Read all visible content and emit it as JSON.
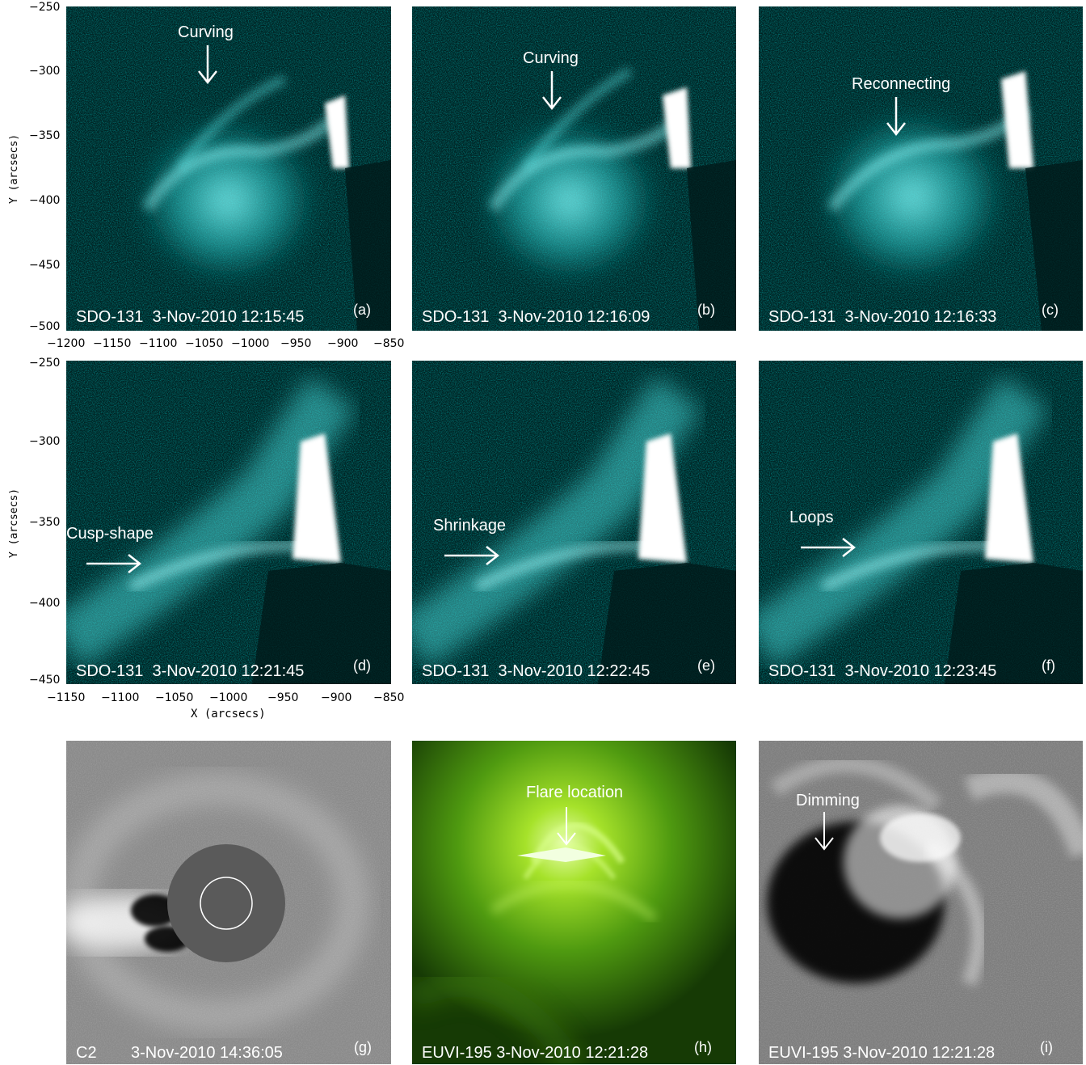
{
  "panels": {
    "a": {
      "caption": "SDO-131  3-Nov-2010 12:15:45",
      "letter": "(a)",
      "annotation": "Curving"
    },
    "b": {
      "caption": "SDO-131  3-Nov-2010 12:16:09",
      "letter": "(b)",
      "annotation": "Curving"
    },
    "c": {
      "caption": "SDO-131  3-Nov-2010 12:16:33",
      "letter": "(c)",
      "annotation": "Reconnecting"
    },
    "d": {
      "caption": "SDO-131  3-Nov-2010 12:21:45",
      "letter": "(d)",
      "annotation": "Cusp-shape"
    },
    "e": {
      "caption": "SDO-131  3-Nov-2010 12:22:45",
      "letter": "(e)",
      "annotation": "Shrinkage"
    },
    "f": {
      "caption": "SDO-131  3-Nov-2010 12:23:45",
      "letter": "(f)",
      "annotation": "Loops"
    },
    "g": {
      "caption_left": "C2",
      "caption": "3-Nov-2010 14:36:05",
      "letter": "(g)"
    },
    "h": {
      "caption": "EUVI-195 3-Nov-2010 12:21:28",
      "letter": "(h)",
      "annotation": "Flare location"
    },
    "i": {
      "caption": "EUVI-195 3-Nov-2010 12:21:28",
      "letter": "(i)",
      "annotation": "Dimming"
    }
  },
  "axes_top": {
    "ylabel": "Y (arcsecs)",
    "yticks": [
      "−250",
      "−300",
      "−350",
      "−400",
      "−450",
      "−500"
    ],
    "xticks": [
      "−1200",
      "−1150",
      "−1100",
      "−1050",
      "−1000",
      "−950",
      "−900",
      "−850"
    ]
  },
  "axes_mid": {
    "ylabel": "Y (arcsecs)",
    "xlabel": "X (arcsecs)",
    "yticks": [
      "−250",
      "−300",
      "−350",
      "−400",
      "−450"
    ],
    "xticks": [
      "−1150",
      "−1100",
      "−1050",
      "−1000",
      "−950",
      "−900",
      "−850"
    ]
  },
  "colors": {
    "aia": "#00e5e5",
    "euvi": "#7fd000",
    "background": "#ffffff",
    "text": "#ffffff"
  }
}
